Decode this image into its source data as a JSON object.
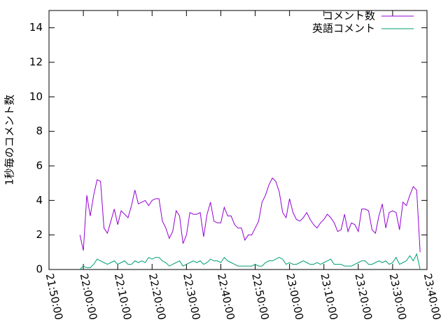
{
  "chart_data": {
    "type": "line",
    "ylabel": "1秒毎のコメント数",
    "x": [
      "21:59:00",
      "22:00:00",
      "22:01:00",
      "22:02:00",
      "22:03:00",
      "22:04:00",
      "22:05:00",
      "22:06:00",
      "22:07:00",
      "22:08:00",
      "22:09:00",
      "22:10:00",
      "22:11:00",
      "22:12:00",
      "22:13:00",
      "22:14:00",
      "22:15:00",
      "22:16:00",
      "22:17:00",
      "22:18:00",
      "22:19:00",
      "22:20:00",
      "22:21:00",
      "22:22:00",
      "22:23:00",
      "22:24:00",
      "22:25:00",
      "22:26:00",
      "22:27:00",
      "22:28:00",
      "22:29:00",
      "22:30:00",
      "22:31:00",
      "22:32:00",
      "22:33:00",
      "22:34:00",
      "22:35:00",
      "22:36:00",
      "22:37:00",
      "22:38:00",
      "22:39:00",
      "22:40:00",
      "22:41:00",
      "22:42:00",
      "22:43:00",
      "22:44:00",
      "22:45:00",
      "22:46:00",
      "22:47:00",
      "22:48:00",
      "22:49:00",
      "22:50:00",
      "22:51:00",
      "22:52:00",
      "22:53:00",
      "22:54:00",
      "22:55:00",
      "22:56:00",
      "22:57:00",
      "22:58:00",
      "22:59:00",
      "23:00:00",
      "23:01:00",
      "23:02:00",
      "23:03:00",
      "23:04:00",
      "23:05:00",
      "23:06:00",
      "23:07:00",
      "23:08:00",
      "23:09:00",
      "23:10:00",
      "23:11:00",
      "23:12:00",
      "23:13:00",
      "23:14:00",
      "23:15:00",
      "23:16:00",
      "23:17:00",
      "23:18:00",
      "23:19:00",
      "23:20:00",
      "23:21:00",
      "23:22:00",
      "23:23:00",
      "23:24:00",
      "23:25:00",
      "23:26:00",
      "23:27:00",
      "23:28:00",
      "23:29:00",
      "23:30:00",
      "23:31:00",
      "23:32:00",
      "23:33:00",
      "23:34:00",
      "23:35:00",
      "23:36:00",
      "23:37:00",
      "23:38:00"
    ],
    "series": [
      {
        "name": "コメント数",
        "color": "#9400d3",
        "values": [
          2.0,
          1.1,
          4.3,
          3.1,
          4.3,
          5.2,
          5.1,
          2.4,
          2.1,
          2.8,
          3.5,
          2.6,
          3.4,
          3.2,
          3.0,
          3.7,
          4.6,
          3.8,
          3.9,
          4.0,
          3.7,
          4.0,
          4.1,
          4.1,
          2.8,
          2.4,
          1.8,
          2.2,
          3.4,
          3.1,
          1.5,
          2.0,
          3.3,
          3.2,
          3.2,
          3.3,
          1.9,
          3.2,
          3.9,
          2.8,
          2.7,
          2.7,
          3.6,
          3.1,
          3.1,
          2.6,
          2.4,
          2.4,
          1.7,
          2.0,
          2.0,
          2.4,
          2.8,
          3.9,
          4.3,
          4.9,
          5.3,
          5.1,
          4.5,
          3.3,
          3.0,
          4.1,
          3.3,
          2.9,
          2.8,
          3.0,
          3.3,
          2.9,
          2.6,
          2.4,
          2.7,
          2.9,
          3.2,
          3.0,
          2.7,
          2.2,
          2.3,
          3.2,
          2.2,
          2.7,
          2.6,
          2.2,
          3.5,
          3.5,
          3.4,
          2.3,
          2.1,
          3.1,
          3.8,
          2.4,
          3.3,
          3.4,
          3.3,
          2.3,
          3.9,
          3.7,
          4.3,
          4.8,
          4.6,
          1.0
        ]
      },
      {
        "name": "英語コメント",
        "color": "#009e73",
        "values": [
          0.0,
          0.2,
          0.1,
          0.1,
          0.3,
          0.6,
          0.5,
          0.4,
          0.3,
          0.4,
          0.5,
          0.3,
          0.4,
          0.5,
          0.3,
          0.3,
          0.5,
          0.4,
          0.5,
          0.4,
          0.7,
          0.6,
          0.7,
          0.7,
          0.5,
          0.4,
          0.2,
          0.3,
          0.4,
          0.5,
          0.2,
          0.3,
          0.4,
          0.5,
          0.4,
          0.5,
          0.3,
          0.4,
          0.6,
          0.5,
          0.5,
          0.4,
          0.7,
          0.5,
          0.4,
          0.3,
          0.2,
          0.2,
          0.2,
          0.2,
          0.2,
          0.3,
          0.2,
          0.2,
          0.4,
          0.5,
          0.5,
          0.6,
          0.7,
          0.6,
          0.3,
          0.4,
          0.3,
          0.3,
          0.4,
          0.5,
          0.4,
          0.3,
          0.3,
          0.4,
          0.3,
          0.4,
          0.5,
          0.6,
          0.3,
          0.3,
          0.3,
          0.2,
          0.2,
          0.2,
          0.3,
          0.4,
          0.5,
          0.5,
          0.3,
          0.3,
          0.4,
          0.5,
          0.4,
          0.5,
          0.3,
          0.4,
          0.7,
          0.3,
          0.4,
          0.5,
          0.8,
          0.5,
          0.9,
          0.0
        ]
      }
    ],
    "xlim": [
      "21:50:00",
      "23:40:00"
    ],
    "xticks": [
      "21:50:00",
      "22:00:00",
      "22:10:00",
      "22:20:00",
      "22:30:00",
      "22:40:00",
      "22:50:00",
      "23:00:00",
      "23:10:00",
      "23:20:00",
      "23:30:00",
      "23:40:00"
    ],
    "ylim": [
      0,
      15
    ],
    "yticks": [
      0,
      2,
      4,
      6,
      8,
      10,
      12,
      14
    ],
    "legend": "top-right"
  }
}
